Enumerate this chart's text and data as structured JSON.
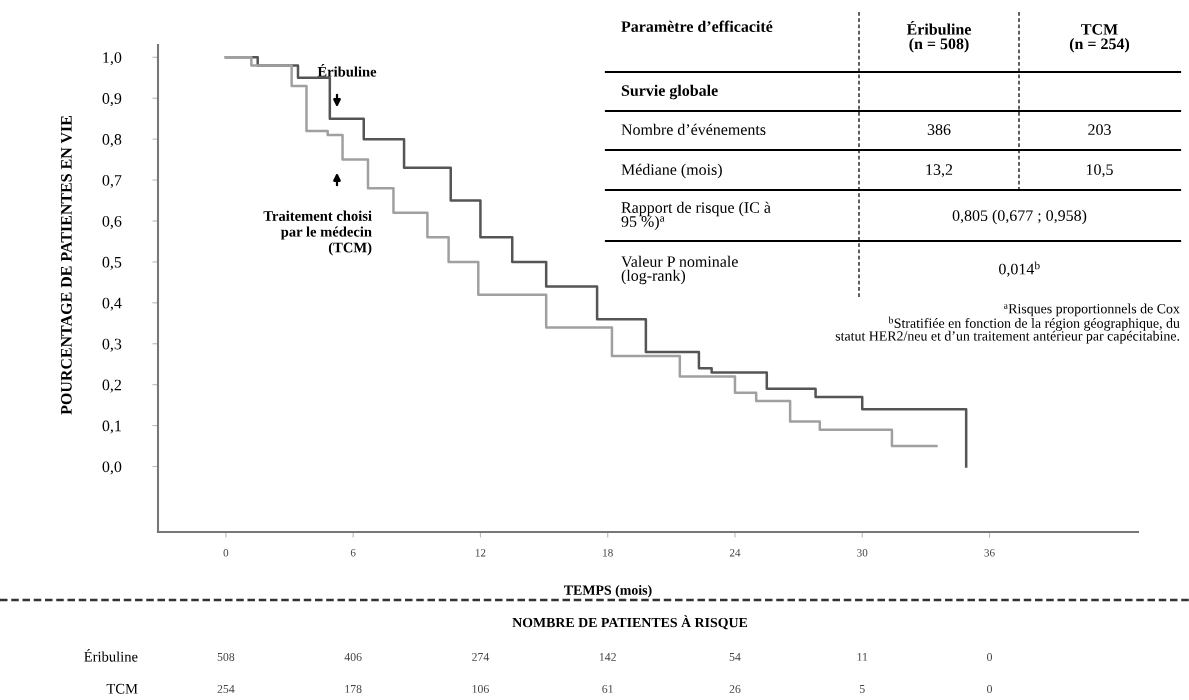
{
  "chart_data": {
    "type": "step",
    "xlabel": "TEMPS (mois)",
    "ylabel": "POURCENTAGE DE PATIENTES EN VIE",
    "xlim": [
      -3.2,
      43
    ],
    "ylim": [
      -0.16,
      1.03
    ],
    "xticks": [
      0,
      6,
      12,
      18,
      24,
      30,
      36
    ],
    "yticks": [
      {
        "value": 0.0,
        "label": "0,0"
      },
      {
        "value": 0.1,
        "label": "0,1"
      },
      {
        "value": 0.2,
        "label": "0,2"
      },
      {
        "value": 0.3,
        "label": "0,3"
      },
      {
        "value": 0.4,
        "label": "0,4"
      },
      {
        "value": 0.5,
        "label": "0,5"
      },
      {
        "value": 0.6,
        "label": "0,6"
      },
      {
        "value": 0.7,
        "label": "0,7"
      },
      {
        "value": 0.8,
        "label": "0,8"
      },
      {
        "value": 0.9,
        "label": "0,9"
      },
      {
        "value": 1.0,
        "label": "1,0"
      }
    ],
    "series": [
      {
        "name": "Éribuline",
        "color": "#555555",
        "x": [
          0,
          1.5,
          3.4,
          4.9,
          6.5,
          8.4,
          10.6,
          12.0,
          13.5,
          15.1,
          17.5,
          19.8,
          22.3,
          22.9,
          25.5,
          27.8,
          30.0,
          34.9,
          34.9
        ],
        "values": [
          1.0,
          0.98,
          0.95,
          0.85,
          0.8,
          0.73,
          0.65,
          0.56,
          0.5,
          0.44,
          0.36,
          0.28,
          0.24,
          0.23,
          0.19,
          0.17,
          0.14,
          0.14,
          0.0
        ]
      },
      {
        "name": "Traitement choisi\npar le médecin\n(TCM)",
        "color": "#a0a0a0",
        "x": [
          0,
          1.2,
          3.1,
          3.8,
          4.8,
          5.5,
          6.7,
          7.9,
          9.5,
          10.5,
          11.9,
          15.1,
          18.2,
          21.4,
          24.0,
          25.0,
          26.6,
          28.0,
          31.4,
          31.4,
          33.5
        ],
        "values": [
          1.0,
          0.98,
          0.93,
          0.82,
          0.81,
          0.75,
          0.68,
          0.62,
          0.56,
          0.5,
          0.42,
          0.34,
          0.27,
          0.22,
          0.18,
          0.16,
          0.11,
          0.09,
          0.09,
          0.05,
          0.05
        ]
      }
    ],
    "annotations": [
      "Paramètre d’efficacité",
      "Éribuline\n(n = 508)",
      "TCM\n(n = 254)",
      "Survie globale",
      "Nombre d’événements",
      "386",
      "203",
      "Médiane (mois)",
      "13,2",
      "10,5",
      "Rapport de risque (IC à\n95 %)$^{a}$",
      "0,805 (0,677 ; 0,958)",
      "Valeur P nominale\n(log-rank)",
      "0,014$^{b}$",
      "$^{a}$Risques proportionnels de Cox",
      "$^{b}$Stratifiée en fonction de la région géographique, du\nstatut HER2/neu et d’un traitement antérieur par capécitabine.",
      "NOMBRE DE PATIENTES À RISQUE",
      "Éribuline",
      "508",
      "406",
      "274",
      "142",
      "54",
      "11",
      "0",
      "TCM",
      "254",
      "178",
      "106",
      "61",
      "26",
      "5",
      "0"
    ]
  }
}
